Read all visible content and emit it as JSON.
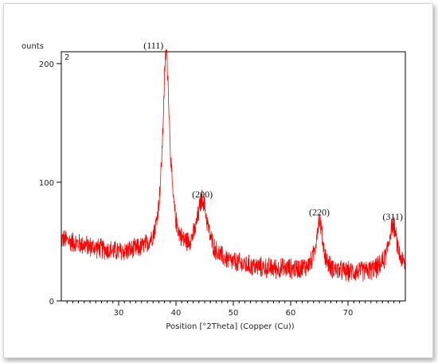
{
  "chart_data": {
    "type": "line",
    "ylabel": "ounts",
    "xlabel": "Position [°2Theta] (Copper (Cu))",
    "panel_label": "2",
    "xlim": [
      20,
      80
    ],
    "ylim": [
      0,
      210
    ],
    "x_ticks": [
      30,
      40,
      50,
      60,
      70
    ],
    "y_ticks": [
      0,
      100,
      200
    ],
    "grid": false,
    "line_color": "#ff0000",
    "baseline": [
      {
        "x": 20,
        "y": 52
      },
      {
        "x": 25,
        "y": 45
      },
      {
        "x": 30,
        "y": 40
      },
      {
        "x": 35,
        "y": 40
      },
      {
        "x": 40,
        "y": 38
      },
      {
        "x": 45,
        "y": 35
      },
      {
        "x": 50,
        "y": 30
      },
      {
        "x": 55,
        "y": 27
      },
      {
        "x": 60,
        "y": 26
      },
      {
        "x": 65,
        "y": 24
      },
      {
        "x": 70,
        "y": 23
      },
      {
        "x": 75,
        "y": 24
      },
      {
        "x": 80,
        "y": 25
      }
    ],
    "noise_amplitude": 10,
    "peaks": [
      {
        "label": "(111)",
        "x": 38.3,
        "height": 170,
        "width": 0.75
      },
      {
        "label": "(200)",
        "x": 44.6,
        "height": 48,
        "width": 1.1
      },
      {
        "label": "(220)",
        "x": 65.0,
        "height": 44,
        "width": 0.7
      },
      {
        "label": "(311)",
        "x": 77.8,
        "height": 40,
        "width": 0.9
      }
    ]
  }
}
